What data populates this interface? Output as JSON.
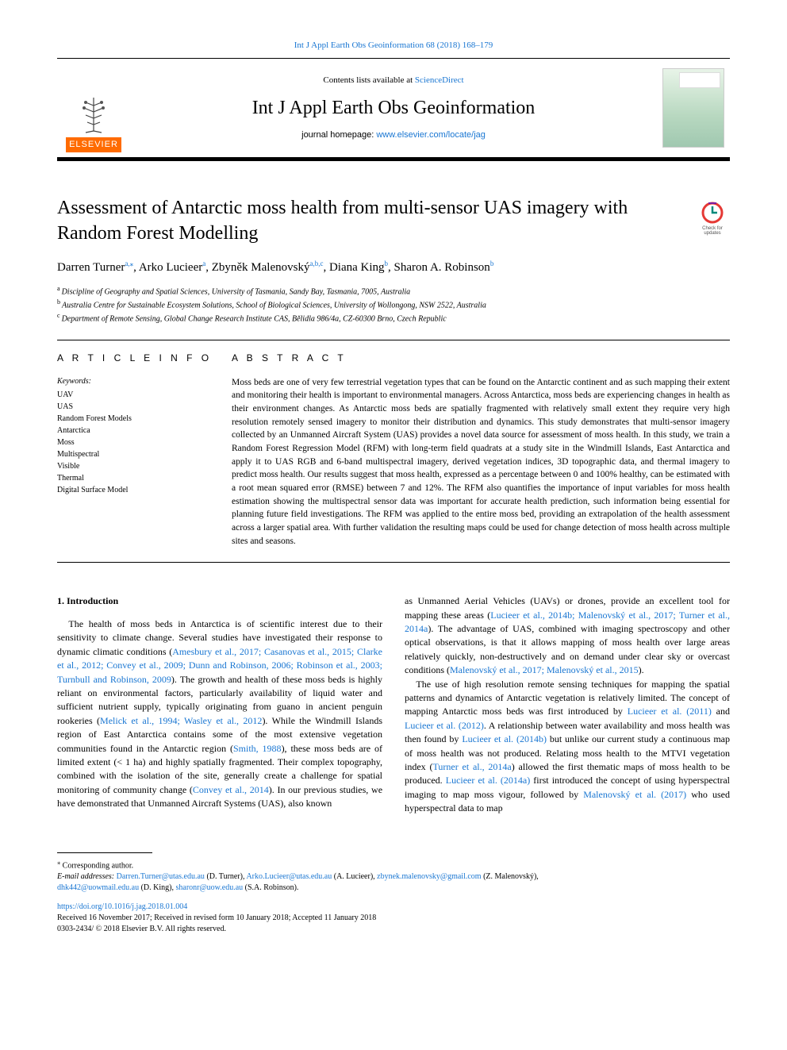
{
  "top_citation": {
    "text": "Int J Appl Earth Obs Geoinformation 68 (2018) 168–179",
    "color": "#1976d2"
  },
  "masthead": {
    "contents_prefix": "Contents lists available at ",
    "contents_link": "ScienceDirect",
    "journal_name": "Int J Appl Earth Obs Geoinformation",
    "homepage_prefix": "journal homepage: ",
    "homepage_url": "www.elsevier.com/locate/jag",
    "publisher_word": "ELSEVIER",
    "publisher_bg": "#ff6b00"
  },
  "check_badge": {
    "line1": "Check for",
    "line2": "updates",
    "ring_color": "#e53935",
    "mark_color": "#00897b"
  },
  "title": "Assessment of Antarctic moss health from multi-sensor UAS imagery with Random Forest Modelling",
  "authors": [
    {
      "name": "Darren Turner",
      "sup": "a,",
      "corr": "⁎"
    },
    {
      "name": "Arko Lucieer",
      "sup": "a",
      "corr": ""
    },
    {
      "name": "Zbyněk Malenovský",
      "sup": "a,b,c",
      "corr": ""
    },
    {
      "name": "Diana King",
      "sup": "b",
      "corr": ""
    },
    {
      "name": "Sharon A. Robinson",
      "sup": "b",
      "corr": ""
    }
  ],
  "affiliations": [
    {
      "key": "a",
      "text": "Discipline of Geography and Spatial Sciences, University of Tasmania, Sandy Bay, Tasmania, 7005, Australia"
    },
    {
      "key": "b",
      "text": "Australia Centre for Sustainable Ecosystem Solutions, School of Biological Sciences, University of Wollongong, NSW 2522, Australia"
    },
    {
      "key": "c",
      "text": "Department of Remote Sensing, Global Change Research Institute CAS, Bělidla 986/4a, CZ-60300 Brno, Czech Republic"
    }
  ],
  "article_info": {
    "label": "A R T I C L E  I N F O",
    "keywords_label": "Keywords:",
    "keywords": [
      "UAV",
      "UAS",
      "Random Forest Models",
      "Antarctica",
      "Moss",
      "Multispectral",
      "Visible",
      "Thermal",
      "Digital Surface Model"
    ]
  },
  "abstract": {
    "label": "A B S T R A C T",
    "text": "Moss beds are one of very few terrestrial vegetation types that can be found on the Antarctic continent and as such mapping their extent and monitoring their health is important to environmental managers. Across Antarctica, moss beds are experiencing changes in health as their environment changes. As Antarctic moss beds are spatially fragmented with relatively small extent they require very high resolution remotely sensed imagery to monitor their distribution and dynamics. This study demonstrates that multi-sensor imagery collected by an Unmanned Aircraft System (UAS) provides a novel data source for assessment of moss health. In this study, we train a Random Forest Regression Model (RFM) with long-term field quadrats at a study site in the Windmill Islands, East Antarctica and apply it to UAS RGB and 6-band multispectral imagery, derived vegetation indices, 3D topographic data, and thermal imagery to predict moss health. Our results suggest that moss health, expressed as a percentage between 0 and 100% healthy, can be estimated with a root mean squared error (RMSE) between 7 and 12%. The RFM also quantifies the importance of input variables for moss health estimation showing the multispectral sensor data was important for accurate health prediction, such information being essential for planning future field investigations. The RFM was applied to the entire moss bed, providing an extrapolation of the health assessment across a larger spatial area. With further validation the resulting maps could be used for change detection of moss health across multiple sites and seasons."
  },
  "body": {
    "heading": "1. Introduction",
    "col1_p1_pre": "The health of moss beds in Antarctica is of scientific interest due to their sensitivity to climate change. Several studies have investigated their response to dynamic climatic conditions (",
    "col1_refs1": "Amesbury et al., 2017; Casanovas et al., 2015; Clarke et al., 2012; Convey et al., 2009; Dunn and Robinson, 2006; Robinson et al., 2003; Turnbull and Robinson, 2009",
    "col1_p1_mid1": "). The growth and health of these moss beds is highly reliant on environmental factors, particularly availability of liquid water and sufficient nutrient supply, typically originating from guano in ancient penguin rookeries (",
    "col1_refs2": "Melick et al., 1994; Wasley et al., 2012",
    "col1_p1_mid2": "). While the Windmill Islands region of East Antarctica contains some of the most extensive vegetation communities found in the Antarctic region (",
    "col1_refs3": "Smith, 1988",
    "col1_p1_mid3": "), these moss beds are of limited extent (< 1 ha) and highly spatially fragmented. Their complex topography, combined with the isolation of the site, generally create a challenge for spatial monitoring of community change (",
    "col1_refs4": "Convey et al., 2014",
    "col1_p1_post": "). In our previous studies, we have demonstrated that Unmanned Aircraft Systems (UAS), also known",
    "col2_p1_pre": "as Unmanned Aerial Vehicles (UAVs) or drones, provide an excellent tool for mapping these areas (",
    "col2_refs1": "Lucieer et al., 2014b; Malenovský et al., 2017; Turner et al., 2014a",
    "col2_p1_mid": "). The advantage of UAS, combined with imaging spectroscopy and other optical observations, is that it allows mapping of moss health over large areas relatively quickly, non-destructively and on demand under clear sky or overcast conditions (",
    "col2_refs2": "Malenovský et al., 2017; Malenovský et al., 2015",
    "col2_p1_post": ").",
    "col2_p2_pre": "The use of high resolution remote sensing techniques for mapping the spatial patterns and dynamics of Antarctic vegetation is relatively limited. The concept of mapping Antarctic moss beds was first introduced by ",
    "col2_refs3": "Lucieer et al. (2011)",
    "col2_p2_mid1": " and ",
    "col2_refs4": "Lucieer et al. (2012)",
    "col2_p2_mid2": ". A relationship between water availability and moss health was then found by ",
    "col2_refs5": "Lucieer et al. (2014b)",
    "col2_p2_mid3": " but unlike our current study a continuous map of moss health was not produced. Relating moss health to the MTVI vegetation index (",
    "col2_refs6": "Turner et al., 2014a",
    "col2_p2_mid4": ") allowed the first thematic maps of moss health to be produced. ",
    "col2_refs7": "Lucieer et al. (2014a)",
    "col2_p2_mid5": " first introduced the concept of using hyperspectral imaging to map moss vigour, followed by ",
    "col2_refs8": "Malenovský et al. (2017)",
    "col2_p2_post": " who used hyperspectral data to map"
  },
  "footnotes": {
    "corr_symbol": "⁎",
    "corr_text": " Corresponding author.",
    "email_label": "E-mail addresses: ",
    "emails": [
      {
        "addr": "Darren.Turner@utas.edu.au",
        "who": " (D. Turner), "
      },
      {
        "addr": "Arko.Lucieer@utas.edu.au",
        "who": " (A. Lucieer), "
      },
      {
        "addr": "zbynek.malenovsky@gmail.com",
        "who": " (Z. Malenovský),"
      }
    ],
    "emails_line2": [
      {
        "addr": "dhk442@uowmail.edu.au",
        "who": " (D. King), "
      },
      {
        "addr": "sharonr@uow.edu.au",
        "who": " (S.A. Robinson)."
      }
    ]
  },
  "doi": {
    "url": "https://doi.org/10.1016/j.jag.2018.01.004",
    "received": "Received 16 November 2017; Received in revised form 10 January 2018; Accepted 11 January 2018",
    "issn": "0303-2434/ © 2018 Elsevier B.V. All rights reserved."
  },
  "link_color": "#1976d2"
}
